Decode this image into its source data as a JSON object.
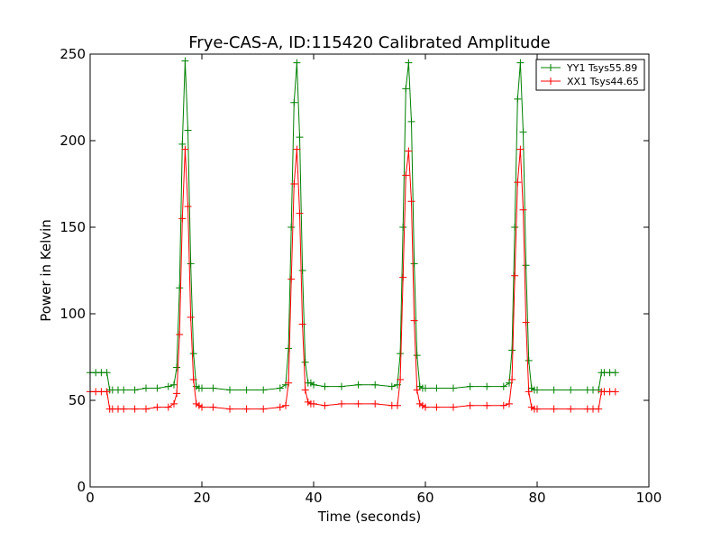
{
  "chart_data": {
    "type": "line",
    "title": "Frye-CAS-A, ID:115420 Calibrated Amplitude",
    "xlabel": "Time (seconds)",
    "ylabel": "Power in Kelvin",
    "xlim": [
      0,
      100
    ],
    "ylim": [
      0,
      250
    ],
    "x_ticks": [
      "0",
      "20",
      "40",
      "60",
      "80",
      "100"
    ],
    "y_ticks": [
      "0",
      "50",
      "100",
      "150",
      "200",
      "250"
    ],
    "grid": false,
    "legend_position": "top-right",
    "marker": "plus",
    "series": [
      {
        "name": "YY1 Tsys55.89",
        "color": "#008000",
        "x": [
          0,
          1,
          2,
          3,
          3.5,
          4,
          5,
          6,
          8,
          10,
          12,
          14,
          15,
          15.5,
          16,
          16.5,
          17,
          17.5,
          18,
          18.5,
          19,
          19.5,
          20,
          22,
          25,
          28,
          31,
          34,
          35,
          35.5,
          36,
          36.5,
          37,
          37.5,
          38,
          38.5,
          39,
          39.5,
          40,
          42,
          45,
          48,
          51,
          54,
          55,
          55.5,
          56,
          56.5,
          57,
          57.5,
          58,
          58.5,
          59,
          59.5,
          60,
          62,
          65,
          68,
          71,
          74,
          75,
          75.5,
          76,
          76.5,
          77,
          77.5,
          78,
          78.5,
          79,
          79.5,
          80,
          83,
          86,
          89,
          90,
          91,
          91.5,
          92,
          93,
          94
        ],
        "y": [
          66,
          66,
          66,
          66,
          56,
          56,
          56,
          56,
          56,
          57,
          57,
          58,
          59,
          69,
          115,
          198,
          246,
          206,
          129,
          77,
          58,
          57,
          57,
          57,
          56,
          56,
          56,
          57,
          59,
          80,
          150,
          222,
          245,
          202,
          125,
          72,
          60,
          60,
          59,
          58,
          58,
          59,
          59,
          58,
          59,
          77,
          150,
          230,
          245,
          211,
          129,
          76,
          58,
          57,
          57,
          57,
          57,
          58,
          58,
          58,
          60,
          79,
          150,
          224,
          245,
          205,
          128,
          73,
          57,
          56,
          56,
          56,
          56,
          56,
          56,
          56,
          66,
          66,
          66,
          66
        ]
      },
      {
        "name": "XX1 Tsys44.65",
        "color": "#ff0000",
        "x": [
          0,
          1,
          2,
          3,
          3.5,
          4,
          5,
          6,
          8,
          10,
          12,
          14,
          15,
          15.5,
          16,
          16.5,
          17,
          17.5,
          18,
          18.5,
          19,
          19.5,
          20,
          22,
          25,
          28,
          31,
          34,
          35,
          35.5,
          36,
          36.5,
          37,
          37.5,
          38,
          38.5,
          39,
          39.5,
          40,
          42,
          45,
          48,
          51,
          54,
          55,
          55.5,
          56,
          56.5,
          57,
          57.5,
          58,
          58.5,
          59,
          59.5,
          60,
          62,
          65,
          68,
          71,
          74,
          75,
          75.5,
          76,
          76.5,
          77,
          77.5,
          78,
          78.5,
          79,
          79.5,
          80,
          83,
          86,
          89,
          90,
          91,
          91.5,
          92,
          93,
          94
        ],
        "y": [
          55,
          55,
          55,
          55,
          45,
          45,
          45,
          45,
          45,
          45,
          46,
          46,
          48,
          54,
          88,
          155,
          195,
          162,
          98,
          62,
          48,
          47,
          46,
          46,
          45,
          45,
          45,
          46,
          47,
          60,
          120,
          175,
          195,
          158,
          94,
          56,
          49,
          48,
          48,
          47,
          48,
          48,
          48,
          47,
          47,
          62,
          121,
          180,
          194,
          165,
          96,
          56,
          48,
          47,
          46,
          46,
          46,
          47,
          47,
          47,
          48,
          62,
          122,
          176,
          195,
          160,
          95,
          55,
          46,
          45,
          45,
          45,
          45,
          45,
          45,
          45,
          55,
          55,
          55,
          55
        ]
      }
    ]
  }
}
